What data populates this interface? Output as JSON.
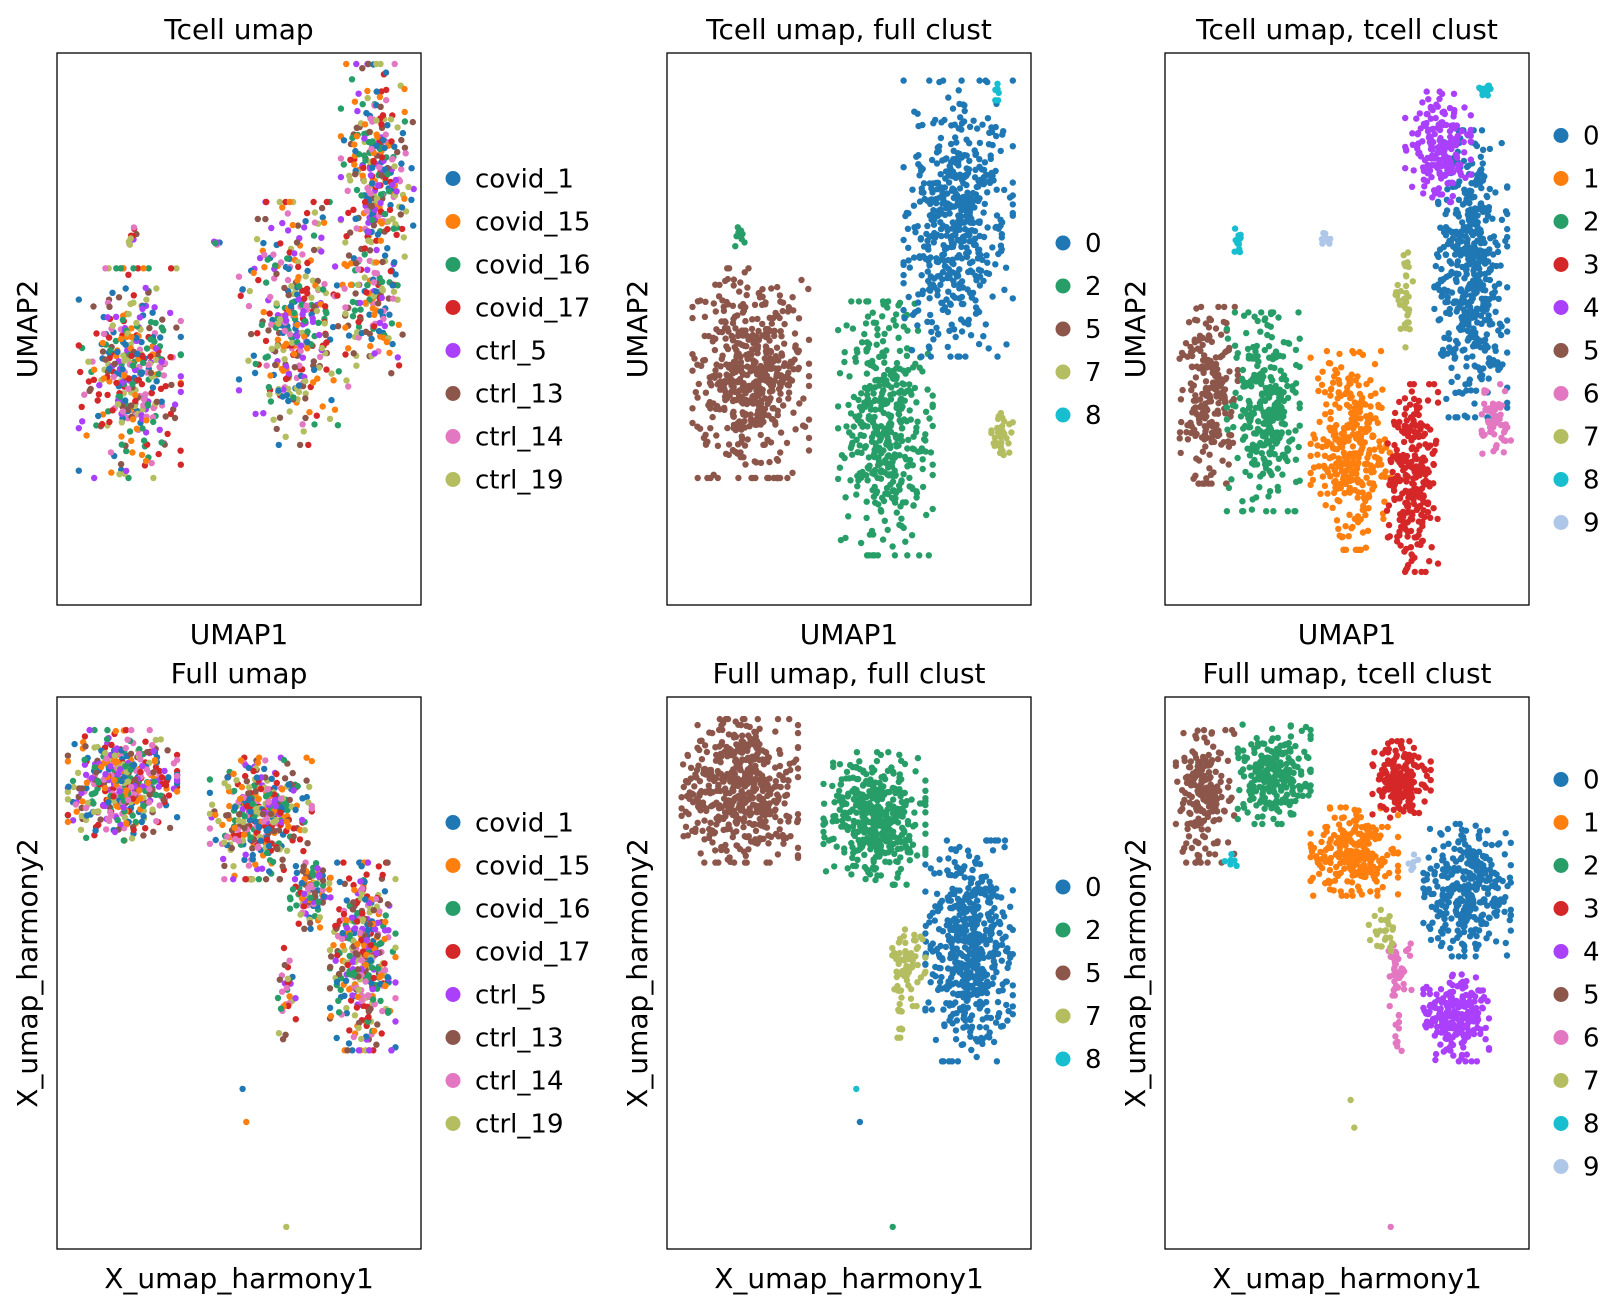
{
  "figure": {
    "sample_labels": [
      "covid_1",
      "covid_15",
      "covid_16",
      "covid_17",
      "ctrl_5",
      "ctrl_13",
      "ctrl_14",
      "ctrl_19"
    ],
    "sample_colors": [
      "#1f77b4",
      "#ff7f0e",
      "#279e68",
      "#d62728",
      "#aa40fc",
      "#8c564b",
      "#e377c2",
      "#b5bd61"
    ],
    "cluster_colors": {
      "0": "#1f77b4",
      "1": "#ff7f0e",
      "2": "#279e68",
      "3": "#d62728",
      "4": "#aa40fc",
      "5": "#8c564b",
      "6": "#e377c2",
      "7": "#b5bd61",
      "8": "#17becf",
      "9": "#aec7e8"
    }
  },
  "chart_data": [
    {
      "type": "scatter",
      "panel": "tcell-sample",
      "title": "Tcell umap",
      "xlabel": "UMAP1",
      "ylabel": "UMAP2",
      "color_by": "sample",
      "legend": [
        "covid_1",
        "covid_15",
        "covid_16",
        "covid_17",
        "ctrl_5",
        "ctrl_13",
        "ctrl_14",
        "ctrl_19"
      ],
      "legend_placement": "right",
      "grid": false,
      "xlim": [
        0,
        100
      ],
      "ylim": [
        0,
        100
      ],
      "clusters": [
        {
          "label": "mixed",
          "cx": 20,
          "cy": 58,
          "rx": 14,
          "ry": 19,
          "n": 360
        },
        {
          "label": "mixed",
          "cx": 65,
          "cy": 49,
          "rx": 15,
          "ry": 22,
          "n": 360
        },
        {
          "label": "mixed",
          "cx": 88,
          "cy": 22,
          "rx": 10,
          "ry": 20,
          "n": 300
        },
        {
          "label": "mixed",
          "cx": 87,
          "cy": 46,
          "rx": 8,
          "ry": 12,
          "n": 120
        },
        {
          "label": "mixed",
          "cx": 21,
          "cy": 33,
          "rx": 1.5,
          "ry": 2,
          "n": 10
        },
        {
          "label": "mixed",
          "cx": 44,
          "cy": 34,
          "rx": 1,
          "ry": 1,
          "n": 5
        }
      ]
    },
    {
      "type": "scatter",
      "panel": "tcell-fullclust",
      "title": "Tcell umap, full clust",
      "xlabel": "UMAP1",
      "ylabel": "UMAP2",
      "color_by": "cluster",
      "legend": [
        "0",
        "2",
        "5",
        "7",
        "8"
      ],
      "legend_placement": "right",
      "grid": false,
      "xlim": [
        0,
        100
      ],
      "ylim": [
        0,
        100
      ],
      "clusters": [
        {
          "label": "5",
          "cx": 23,
          "cy": 58,
          "rx": 16,
          "ry": 19,
          "n": 520
        },
        {
          "label": "2",
          "cx": 60,
          "cy": 68,
          "rx": 13,
          "ry": 23,
          "n": 420
        },
        {
          "label": "0",
          "cx": 80,
          "cy": 30,
          "rx": 15,
          "ry": 25,
          "n": 520
        },
        {
          "label": "7",
          "cx": 92,
          "cy": 70,
          "rx": 3,
          "ry": 5,
          "n": 40
        },
        {
          "label": "2",
          "cx": 20,
          "cy": 33,
          "rx": 1.5,
          "ry": 2,
          "n": 10
        },
        {
          "label": "8",
          "cx": 91,
          "cy": 7,
          "rx": 1.5,
          "ry": 2,
          "n": 6
        }
      ]
    },
    {
      "type": "scatter",
      "panel": "tcell-tcellclust",
      "title": "Tcell umap, tcell clust",
      "xlabel": "UMAP1",
      "ylabel": "UMAP2",
      "color_by": "cluster",
      "legend": [
        "0",
        "1",
        "2",
        "3",
        "4",
        "5",
        "6",
        "7",
        "8",
        "9"
      ],
      "legend_placement": "right",
      "grid": false,
      "xlim": [
        0,
        100
      ],
      "ylim": [
        0,
        100
      ],
      "clusters": [
        {
          "label": "5",
          "cx": 12,
          "cy": 62,
          "rx": 8,
          "ry": 16,
          "n": 230
        },
        {
          "label": "2",
          "cx": 27,
          "cy": 65,
          "rx": 10,
          "ry": 18,
          "n": 300
        },
        {
          "label": "1",
          "cx": 51,
          "cy": 72,
          "rx": 11,
          "ry": 18,
          "n": 330
        },
        {
          "label": "3",
          "cx": 68,
          "cy": 77,
          "rx": 7,
          "ry": 17,
          "n": 250
        },
        {
          "label": "0",
          "cx": 84,
          "cy": 40,
          "rx": 10,
          "ry": 26,
          "n": 500
        },
        {
          "label": "4",
          "cx": 75,
          "cy": 17,
          "rx": 9,
          "ry": 10,
          "n": 180
        },
        {
          "label": "6",
          "cx": 91,
          "cy": 67,
          "rx": 4,
          "ry": 7,
          "n": 60
        },
        {
          "label": "7",
          "cx": 66,
          "cy": 44,
          "rx": 3,
          "ry": 10,
          "n": 35
        },
        {
          "label": "8",
          "cx": 88,
          "cy": 7,
          "rx": 2,
          "ry": 2,
          "n": 12
        },
        {
          "label": "8",
          "cx": 20,
          "cy": 34,
          "rx": 1.5,
          "ry": 3,
          "n": 12
        },
        {
          "label": "9",
          "cx": 44,
          "cy": 34,
          "rx": 1.5,
          "ry": 1.5,
          "n": 8
        }
      ]
    },
    {
      "type": "scatter",
      "panel": "full-sample",
      "title": "Full umap",
      "xlabel": "X_umap_harmony1",
      "ylabel": "X_umap_harmony2",
      "color_by": "sample",
      "legend": [
        "covid_1",
        "covid_15",
        "covid_16",
        "covid_17",
        "ctrl_5",
        "ctrl_13",
        "ctrl_14",
        "ctrl_19"
      ],
      "legend_placement": "right",
      "grid": false,
      "xlim": [
        0,
        100
      ],
      "ylim": [
        0,
        100
      ],
      "clusters": [
        {
          "label": "mixed",
          "cx": 18,
          "cy": 16,
          "rx": 15,
          "ry": 10,
          "n": 420
        },
        {
          "label": "mixed",
          "cx": 56,
          "cy": 22,
          "rx": 14,
          "ry": 11,
          "n": 380
        },
        {
          "label": "mixed",
          "cx": 84,
          "cy": 47,
          "rx": 9,
          "ry": 17,
          "n": 380
        },
        {
          "label": "mixed",
          "cx": 70,
          "cy": 36,
          "rx": 6,
          "ry": 6,
          "n": 100
        },
        {
          "label": "mixed",
          "cx": 63,
          "cy": 53,
          "rx": 3,
          "ry": 9,
          "n": 30
        }
      ],
      "outliers": [
        {
          "label": "0",
          "x": 51,
          "y": 71
        },
        {
          "label": "1",
          "x": 52,
          "y": 77
        },
        {
          "label": "7",
          "x": 63,
          "y": 96
        }
      ]
    },
    {
      "type": "scatter",
      "panel": "full-fullclust",
      "title": "Full umap, full clust",
      "xlabel": "X_umap_harmony1",
      "ylabel": "X_umap_harmony2",
      "color_by": "cluster",
      "legend": [
        "0",
        "2",
        "5",
        "7",
        "8"
      ],
      "legend_placement": "right",
      "grid": false,
      "xlim": [
        0,
        100
      ],
      "ylim": [
        0,
        100
      ],
      "clusters": [
        {
          "label": "5",
          "cx": 20,
          "cy": 17,
          "rx": 16,
          "ry": 13,
          "n": 500
        },
        {
          "label": "2",
          "cx": 57,
          "cy": 22,
          "rx": 14,
          "ry": 12,
          "n": 420
        },
        {
          "label": "0",
          "cx": 83,
          "cy": 46,
          "rx": 12,
          "ry": 20,
          "n": 520
        },
        {
          "label": "7",
          "cx": 66,
          "cy": 49,
          "rx": 5,
          "ry": 7,
          "n": 60
        },
        {
          "label": "7",
          "cx": 64,
          "cy": 58,
          "rx": 1,
          "ry": 7,
          "n": 12
        }
      ],
      "outliers": [
        {
          "label": "8",
          "x": 52,
          "y": 71
        },
        {
          "label": "0",
          "x": 53,
          "y": 77
        },
        {
          "label": "2",
          "x": 62,
          "y": 96
        }
      ]
    },
    {
      "type": "scatter",
      "panel": "full-tcellclust",
      "title": "Full umap, tcell clust",
      "xlabel": "X_umap_harmony1",
      "ylabel": "X_umap_harmony2",
      "color_by": "cluster",
      "legend": [
        "0",
        "1",
        "2",
        "3",
        "4",
        "5",
        "6",
        "7",
        "8",
        "9"
      ],
      "legend_placement": "right",
      "grid": false,
      "xlim": [
        0,
        100
      ],
      "ylim": [
        0,
        100
      ],
      "clusters": [
        {
          "label": "5",
          "cx": 11,
          "cy": 18,
          "rx": 8,
          "ry": 12,
          "n": 200
        },
        {
          "label": "2",
          "cx": 30,
          "cy": 14,
          "rx": 10,
          "ry": 9,
          "n": 240
        },
        {
          "label": "1",
          "cx": 52,
          "cy": 28,
          "rx": 12,
          "ry": 8,
          "n": 260
        },
        {
          "label": "3",
          "cx": 65,
          "cy": 15,
          "rx": 8,
          "ry": 7,
          "n": 180
        },
        {
          "label": "0",
          "cx": 83,
          "cy": 35,
          "rx": 12,
          "ry": 12,
          "n": 340
        },
        {
          "label": "4",
          "cx": 80,
          "cy": 58,
          "rx": 9,
          "ry": 8,
          "n": 220
        },
        {
          "label": "6",
          "cx": 64,
          "cy": 50,
          "rx": 4,
          "ry": 6,
          "n": 40
        },
        {
          "label": "7",
          "cx": 60,
          "cy": 42,
          "rx": 4,
          "ry": 4,
          "n": 25
        },
        {
          "label": "8",
          "cx": 18,
          "cy": 30,
          "rx": 2,
          "ry": 2,
          "n": 6
        },
        {
          "label": "9",
          "cx": 68,
          "cy": 30,
          "rx": 2,
          "ry": 2,
          "n": 6
        },
        {
          "label": "6",
          "cx": 64,
          "cy": 61,
          "rx": 1,
          "ry": 5,
          "n": 10
        }
      ],
      "outliers": [
        {
          "label": "7",
          "x": 51,
          "y": 73
        },
        {
          "label": "7",
          "x": 52,
          "y": 78
        },
        {
          "label": "6",
          "x": 62,
          "y": 96
        }
      ]
    }
  ]
}
